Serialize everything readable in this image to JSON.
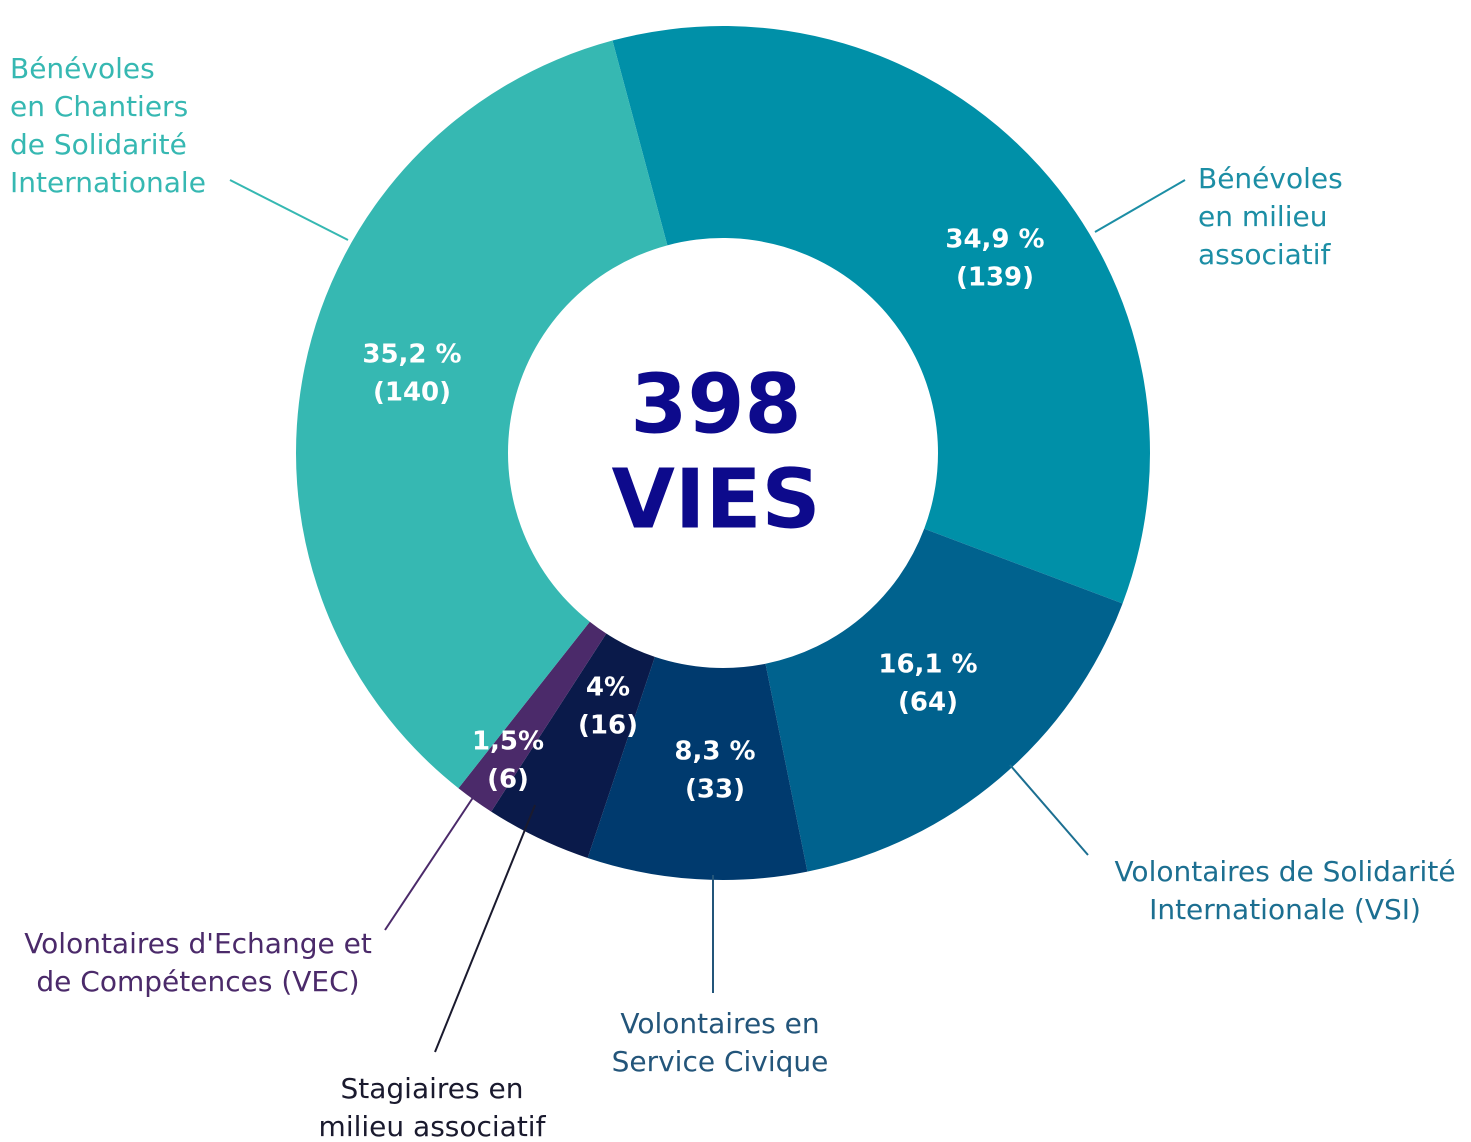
{
  "chart_data": {
    "type": "donut",
    "center_value": 398,
    "center_label": "VIES",
    "categories": [
      [
        "Bénévoles",
        "en milieu",
        "associatif"
      ],
      [
        "Volontaires de Solidarité",
        "Internationale (VSI)"
      ],
      [
        "Volontaires en",
        "Service Civique"
      ],
      [
        "Stagiaires en",
        "milieu associatif"
      ],
      [
        "Volontaires d'Echange et",
        "de Compétences (VEC)"
      ],
      [
        "Bénévoles",
        "en Chantiers",
        "de Solidarité",
        "Internationale"
      ]
    ],
    "values": [
      34.9,
      16.1,
      8.3,
      4,
      1.5,
      35.2
    ],
    "value_labels": [
      "34,9 %",
      "16,1 %",
      "8,3 %",
      "4%",
      "1,5%",
      "35,2 %"
    ],
    "counts": [
      139,
      64,
      33,
      16,
      6,
      140
    ],
    "count_labels": [
      "(139)",
      "(64)",
      "(33)",
      "(16)",
      "(6)",
      "(140)"
    ],
    "colors": [
      "#0090a8",
      "#00628e",
      "#003a6e",
      "#0a1a4a",
      "#4b2a6a",
      "#36b8b2"
    ],
    "label_colors": [
      "#1c8ea5",
      "#1c6f91",
      "#23557a",
      "#1a1a2e",
      "#4b2a6a",
      "#36b8b2"
    ]
  }
}
